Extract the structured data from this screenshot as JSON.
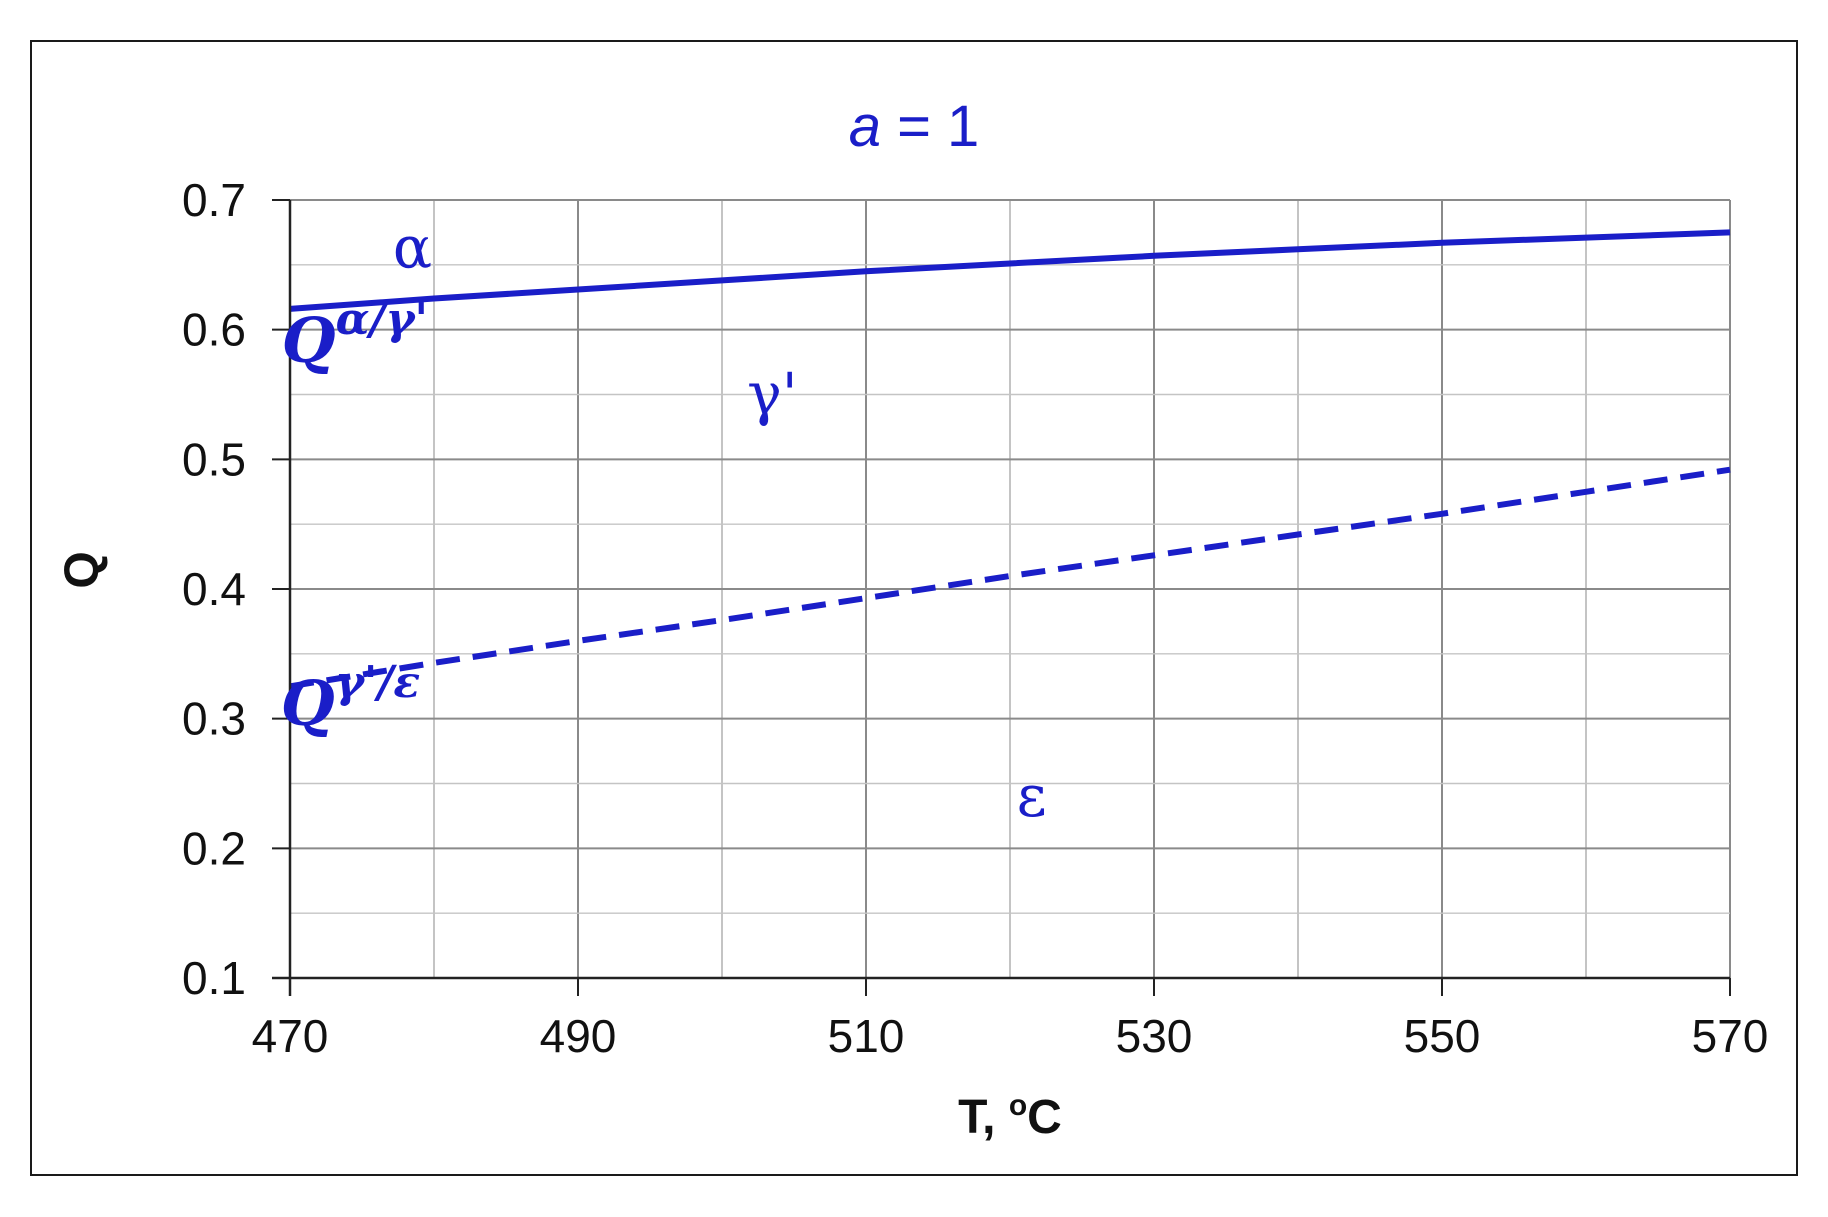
{
  "chart_data": {
    "type": "line",
    "title_var": "a",
    "title_rest": " = 1",
    "xlabel_main": "T, ",
    "xlabel_deg": "o",
    "xlabel_unit": "C",
    "ylabel": "Q",
    "xlim": [
      470,
      570
    ],
    "ylim": [
      0.1,
      0.7
    ],
    "x_ticks": [
      "470",
      "490",
      "510",
      "530",
      "550",
      "570"
    ],
    "y_ticks": [
      "0.1",
      "0.2",
      "0.3",
      "0.4",
      "0.5",
      "0.6",
      "0.7"
    ],
    "x_minor_step": 10,
    "y_minor_step": 0.05,
    "grid": true,
    "color": "#1a1ec8",
    "series": [
      {
        "style": "solid",
        "x": [
          470,
          480,
          490,
          500,
          510,
          520,
          530,
          540,
          550,
          560,
          570
        ],
        "y": [
          0.616,
          0.624,
          0.631,
          0.638,
          0.645,
          0.651,
          0.657,
          0.662,
          0.667,
          0.671,
          0.675
        ]
      },
      {
        "style": "dashed",
        "x": [
          470,
          480,
          490,
          500,
          510,
          520,
          530,
          540,
          550,
          560,
          570
        ],
        "y": [
          0.325,
          0.343,
          0.36,
          0.376,
          0.393,
          0.41,
          0.426,
          0.442,
          0.458,
          0.475,
          0.492
        ]
      }
    ],
    "annotations": [
      {
        "name": "alpha-region-label",
        "text": "α",
        "x": 478.5,
        "y": 0.648
      },
      {
        "name": "gamma-prime-region-label",
        "text": "γ'",
        "x": 503.5,
        "y": 0.535
      },
      {
        "name": "epsilon-region-label",
        "text": "ε",
        "x": 521.5,
        "y": 0.225
      }
    ],
    "boundary_labels": [
      {
        "name": "boundary-label-alpha-gamma",
        "base": "Q",
        "sup": "α/γ'",
        "x": 474.5,
        "y": 0.575
      },
      {
        "name": "boundary-label-gamma-epsilon",
        "base": "Q",
        "sup": "γ'/ε",
        "x": 474.2,
        "y": 0.295
      }
    ]
  }
}
